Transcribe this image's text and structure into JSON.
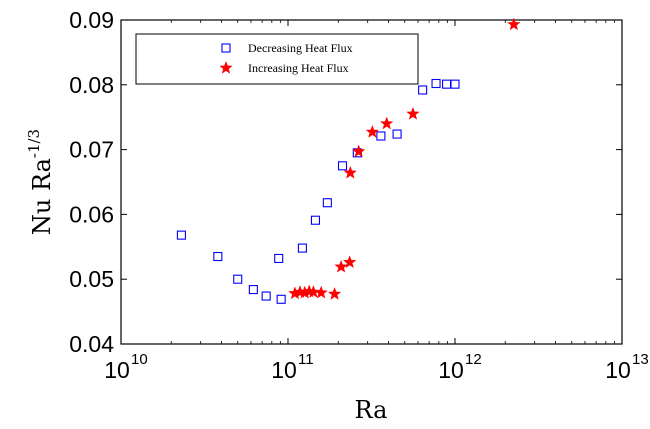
{
  "chart_data": {
    "type": "scatter",
    "title": "",
    "xlabel": "Ra",
    "ylabel": "Nu Ra",
    "ylabel_exponent": "-1/3",
    "xscale": "log",
    "xlim": [
      10000000000.0,
      10000000000000.0
    ],
    "ylim": [
      0.04,
      0.09
    ],
    "x_ticks": [
      {
        "base": "10",
        "exp": "10",
        "value": 10000000000.0
      },
      {
        "base": "10",
        "exp": "11",
        "value": 100000000000.0
      },
      {
        "base": "10",
        "exp": "12",
        "value": 1000000000000.0
      },
      {
        "base": "10",
        "exp": "13",
        "value": 10000000000000.0
      }
    ],
    "y_ticks": [
      {
        "label": "0.04",
        "value": 0.04
      },
      {
        "label": "0.05",
        "value": 0.05
      },
      {
        "label": "0.06",
        "value": 0.06
      },
      {
        "label": "0.07",
        "value": 0.07
      },
      {
        "label": "0.08",
        "value": 0.08
      },
      {
        "label": "0.09",
        "value": 0.09
      }
    ],
    "grid": false,
    "legend_position": "top-left",
    "series": [
      {
        "name": "Decreasing Heat Flux",
        "marker": "square",
        "color": "#0000ff",
        "points": [
          [
            23000000000.0,
            0.0568
          ],
          [
            38000000000.0,
            0.0535
          ],
          [
            50000000000.0,
            0.05
          ],
          [
            62000000000.0,
            0.0484
          ],
          [
            74000000000.0,
            0.0474
          ],
          [
            88000000000.0,
            0.0532
          ],
          [
            91000000000.0,
            0.0469
          ],
          [
            122000000000.0,
            0.0548
          ],
          [
            146000000000.0,
            0.0591
          ],
          [
            172000000000.0,
            0.0618
          ],
          [
            212000000000.0,
            0.0675
          ],
          [
            260000000000.0,
            0.0695
          ],
          [
            360000000000.0,
            0.0721
          ],
          [
            450000000000.0,
            0.0724
          ],
          [
            640000000000.0,
            0.0792
          ],
          [
            770000000000.0,
            0.0802
          ],
          [
            890000000000.0,
            0.0801
          ],
          [
            1000000000000.0,
            0.0801
          ]
        ]
      },
      {
        "name": "Increasing Heat Flux",
        "marker": "star",
        "color": "#ff0000",
        "points": [
          [
            110000000000.0,
            0.0478
          ],
          [
            118000000000.0,
            0.048
          ],
          [
            126000000000.0,
            0.0479
          ],
          [
            134000000000.0,
            0.0481
          ],
          [
            142000000000.0,
            0.048
          ],
          [
            158000000000.0,
            0.0479
          ],
          [
            190000000000.0,
            0.0477
          ],
          [
            208000000000.0,
            0.0519
          ],
          [
            234000000000.0,
            0.0526
          ],
          [
            236000000000.0,
            0.0664
          ],
          [
            265000000000.0,
            0.0697
          ],
          [
            320000000000.0,
            0.0727
          ],
          [
            390000000000.0,
            0.074
          ],
          [
            560000000000.0,
            0.0755
          ],
          [
            2250000000000.0,
            0.0893
          ]
        ]
      }
    ]
  }
}
